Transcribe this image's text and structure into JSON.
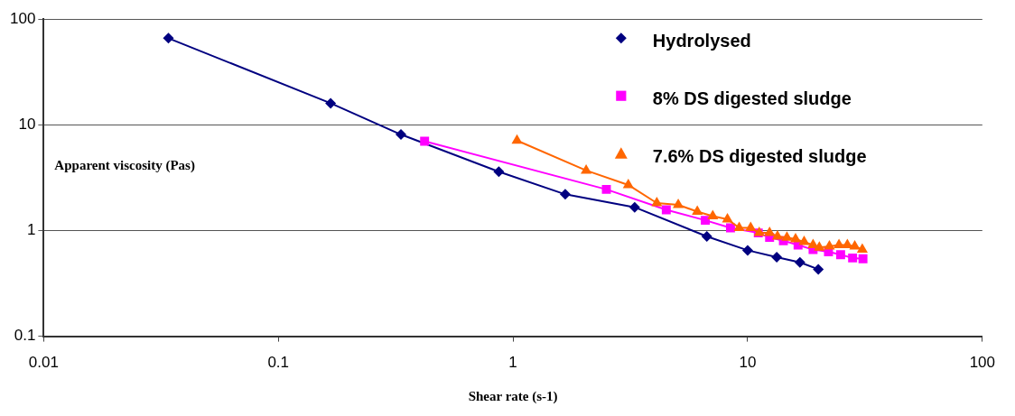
{
  "chart_data": {
    "type": "line",
    "xlabel": "Shear rate (s-1)",
    "ylabel": "Apparent viscosity (Pas)",
    "log": "xy",
    "grid": "y",
    "legend": "top right",
    "line_style": "solid",
    "xlim": [
      0.01,
      100
    ],
    "xticks": [
      0.01,
      0.1,
      1,
      10,
      100
    ],
    "ylim": [
      0.1,
      100
    ],
    "yticks": [
      0.1,
      1,
      10,
      100
    ],
    "series": [
      {
        "name": "Hydrolysed",
        "color": "#000080",
        "marker": "diamond",
        "x": [
          0.034,
          0.167,
          0.333,
          0.87,
          1.67,
          3.3,
          6.7,
          10,
          13.3,
          16.7,
          20
        ],
        "values": [
          66,
          16,
          8.1,
          3.6,
          2.2,
          1.66,
          0.88,
          0.65,
          0.56,
          0.5,
          0.43
        ]
      },
      {
        "name": "8% DS digested sludge",
        "color": "#ff00ff",
        "marker": "square",
        "x": [
          0.42,
          2.5,
          4.5,
          6.6,
          8.45,
          11.1,
          12.4,
          14.2,
          16.4,
          19,
          22.1,
          24.9,
          28,
          31
        ],
        "values": [
          7,
          2.45,
          1.57,
          1.25,
          1.06,
          0.95,
          0.86,
          0.8,
          0.73,
          0.66,
          0.63,
          0.59,
          0.55,
          0.54
        ]
      },
      {
        "name": "7.6% DS digested sludge",
        "color": "#ff6600",
        "marker": "triangle",
        "x": [
          1.04,
          2.05,
          3.1,
          4.1,
          5.06,
          6.1,
          7.1,
          8.2,
          9.2,
          10.3,
          11.2,
          12.4,
          13.4,
          14.7,
          16,
          17.4,
          19,
          20.2,
          22.3,
          24.5,
          26.6,
          28.6,
          30.8
        ],
        "values": [
          7.1,
          3.7,
          2.7,
          1.82,
          1.75,
          1.51,
          1.37,
          1.28,
          1.06,
          1.06,
          0.95,
          0.95,
          0.88,
          0.86,
          0.83,
          0.78,
          0.73,
          0.69,
          0.71,
          0.73,
          0.73,
          0.71,
          0.66
        ]
      }
    ]
  }
}
